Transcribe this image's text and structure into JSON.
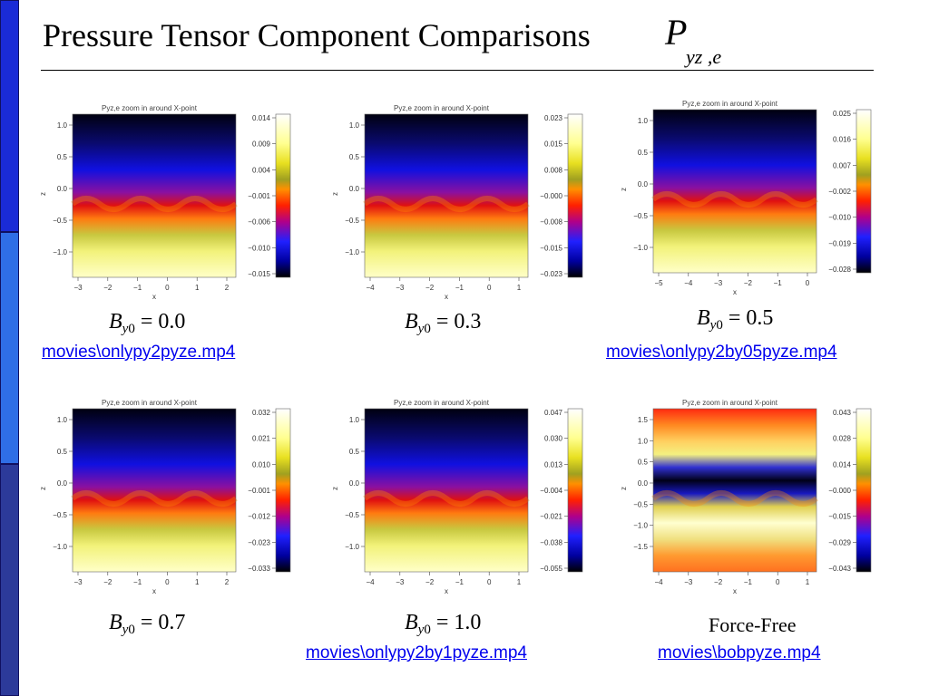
{
  "title": {
    "text": "Pressure Tensor Component Comparisons",
    "symbol": "P",
    "symbol_sub": "yz ,e"
  },
  "colors": {
    "sidebar": [
      "#1a2bd6",
      "#2f6ee6",
      "#2c3a9a"
    ],
    "link": "#0000ee"
  },
  "panels": [
    {
      "plot_title": "Pyz,e zoom in around X-point",
      "x_ticks": [
        "−3",
        "−2",
        "−1",
        "0",
        "1",
        "2"
      ],
      "y_ticks": [
        "1.0",
        "0.5",
        "0.0",
        "−0.5",
        "−1.0"
      ],
      "x_label": "x",
      "y_label": "z",
      "colorbar_ticks": [
        "0.014",
        "0.009",
        "0.004",
        "−0.001",
        "−0.006",
        "−0.010",
        "−0.015"
      ],
      "by0_value": "0.0",
      "caption": "",
      "link": "movies\\onlypy2pyze.mp4"
    },
    {
      "plot_title": "Pyz,e zoom in around X-point",
      "x_ticks": [
        "−4",
        "−3",
        "−2",
        "−1",
        "0",
        "1"
      ],
      "y_ticks": [
        "1.0",
        "0.5",
        "0.0",
        "−0.5",
        "−1.0"
      ],
      "x_label": "x",
      "y_label": "z",
      "colorbar_ticks": [
        "0.023",
        "0.015",
        "0.008",
        "−0.000",
        "−0.008",
        "−0.015",
        "−0.023"
      ],
      "by0_value": "0.3",
      "caption": "",
      "link": ""
    },
    {
      "plot_title": "Pyz,e zoom in around X-point",
      "x_ticks": [
        "−5",
        "−4",
        "−3",
        "−2",
        "−1",
        "0"
      ],
      "y_ticks": [
        "1.0",
        "0.5",
        "0.0",
        "−0.5",
        "−1.0"
      ],
      "x_label": "x",
      "y_label": "z",
      "colorbar_ticks": [
        "0.025",
        "0.016",
        "0.007",
        "−0.002",
        "−0.010",
        "−0.019",
        "−0.028"
      ],
      "by0_value": "0.5",
      "caption": "",
      "link": "movies\\onlypy2by05pyze.mp4"
    },
    {
      "plot_title": "Pyz,e zoom in around X-point",
      "x_ticks": [
        "−3",
        "−2",
        "−1",
        "0",
        "1",
        "2"
      ],
      "y_ticks": [
        "1.0",
        "0.5",
        "0.0",
        "−0.5",
        "−1.0"
      ],
      "x_label": "x",
      "y_label": "z",
      "colorbar_ticks": [
        "0.032",
        "0.021",
        "0.010",
        "−0.001",
        "−0.012",
        "−0.023",
        "−0.033"
      ],
      "by0_value": "0.7",
      "caption": "",
      "link": ""
    },
    {
      "plot_title": "Pyz,e zoom in around X-point",
      "x_ticks": [
        "−4",
        "−3",
        "−2",
        "−1",
        "0",
        "1"
      ],
      "y_ticks": [
        "1.0",
        "0.5",
        "0.0",
        "−0.5",
        "−1.0"
      ],
      "x_label": "x",
      "y_label": "z",
      "colorbar_ticks": [
        "0.047",
        "0.030",
        "0.013",
        "−0.004",
        "−0.021",
        "−0.038",
        "−0.055"
      ],
      "by0_value": "1.0",
      "caption": "",
      "link": "movies\\onlypy2by1pyze.mp4"
    },
    {
      "plot_title": "Pyz,e zoom in around X-point",
      "x_ticks": [
        "−4",
        "−3",
        "−2",
        "−1",
        "0",
        "1"
      ],
      "y_ticks": [
        "1.5",
        "1.0",
        "0.5",
        "0.0",
        "−0.5",
        "−1.0",
        "−1.5"
      ],
      "x_label": "x",
      "y_label": "z",
      "colorbar_ticks": [
        "0.043",
        "0.028",
        "0.014",
        "−0.000",
        "−0.015",
        "−0.029",
        "−0.043"
      ],
      "by0_value": "",
      "caption": "Force-Free",
      "link": "movies\\bobpyze.mp4"
    }
  ]
}
